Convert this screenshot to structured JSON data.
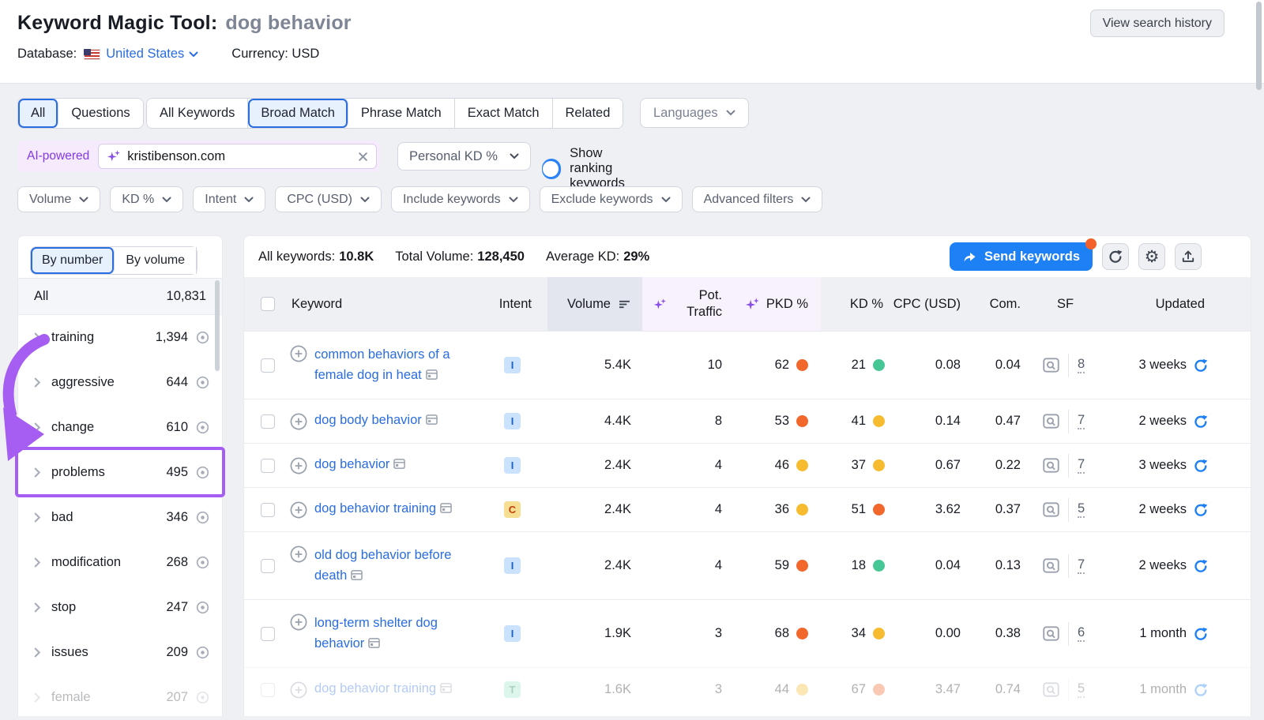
{
  "header": {
    "title": "Keyword Magic Tool:",
    "query": "dog behavior",
    "view_history_label": "View search history",
    "database_label": "Database:",
    "database_value": "United States",
    "currency_label": "Currency:",
    "currency_value": "USD"
  },
  "match_tabs": {
    "group1": [
      {
        "label": "All",
        "active": true
      },
      {
        "label": "Questions",
        "active": false
      }
    ],
    "group2": [
      {
        "label": "All Keywords",
        "active": false
      },
      {
        "label": "Broad Match",
        "active": true
      },
      {
        "label": "Phrase Match",
        "active": false
      },
      {
        "label": "Exact Match",
        "active": false
      },
      {
        "label": "Related",
        "active": false
      }
    ],
    "languages_label": "Languages"
  },
  "search": {
    "ai_label": "AI-powered",
    "value": "kristibenson.com",
    "personal_kd_label": "Personal KD %",
    "toggle_label": "Show ranking keywords",
    "toggle_on": true
  },
  "filters": [
    "Volume",
    "KD %",
    "Intent",
    "CPC (USD)",
    "Include keywords",
    "Exclude keywords",
    "Advanced filters"
  ],
  "sidebar": {
    "tabs": [
      {
        "label": "By number",
        "active": true
      },
      {
        "label": "By volume",
        "active": false
      }
    ],
    "all_label": "All",
    "all_count": "10,831",
    "groups": [
      {
        "label": "training",
        "count": "1,394"
      },
      {
        "label": "aggressive",
        "count": "644"
      },
      {
        "label": "change",
        "count": "610"
      },
      {
        "label": "problems",
        "count": "495",
        "highlighted": true
      },
      {
        "label": "bad",
        "count": "346"
      },
      {
        "label": "modification",
        "count": "268"
      },
      {
        "label": "stop",
        "count": "247"
      },
      {
        "label": "issues",
        "count": "209"
      },
      {
        "label": "female",
        "count": "207",
        "faded": true
      }
    ]
  },
  "toolbar": {
    "stats": [
      {
        "label": "All keywords:",
        "value": "10.8K"
      },
      {
        "label": "Total Volume:",
        "value": "128,450"
      },
      {
        "label": "Average KD:",
        "value": "29%"
      }
    ],
    "send_label": "Send keywords"
  },
  "table": {
    "columns": {
      "keyword": "Keyword",
      "intent": "Intent",
      "volume": "Volume",
      "pot_traffic": "Pot. Traffic",
      "pkd": "PKD %",
      "kd": "KD %",
      "cpc": "CPC (USD)",
      "com": "Com.",
      "sf": "SF",
      "updated": "Updated"
    },
    "rows": [
      {
        "keyword": "common behaviors of a female dog in heat",
        "intent": "I",
        "volume": "5.4K",
        "pot_traffic": "10",
        "pkd": "62",
        "pkd_level": "orange",
        "kd": "21",
        "kd_level": "green",
        "cpc": "0.08",
        "com": "0.04",
        "sf": "8",
        "updated": "3 weeks",
        "two_line": true
      },
      {
        "keyword": "dog body behavior",
        "intent": "I",
        "volume": "4.4K",
        "pot_traffic": "8",
        "pkd": "53",
        "pkd_level": "orange",
        "kd": "41",
        "kd_level": "yellow",
        "cpc": "0.14",
        "com": "0.47",
        "sf": "7",
        "updated": "2 weeks",
        "two_line": false
      },
      {
        "keyword": "dog behavior",
        "intent": "I",
        "volume": "2.4K",
        "pot_traffic": "4",
        "pkd": "46",
        "pkd_level": "yellow",
        "kd": "37",
        "kd_level": "yellow",
        "cpc": "0.67",
        "com": "0.22",
        "sf": "7",
        "updated": "3 weeks",
        "two_line": false
      },
      {
        "keyword": "dog behavior training",
        "intent": "C",
        "volume": "2.4K",
        "pot_traffic": "4",
        "pkd": "36",
        "pkd_level": "yellow",
        "kd": "51",
        "kd_level": "orange",
        "cpc": "3.62",
        "com": "0.37",
        "sf": "5",
        "updated": "2 weeks",
        "two_line": false
      },
      {
        "keyword": "old dog behavior before death",
        "intent": "I",
        "volume": "2.4K",
        "pot_traffic": "4",
        "pkd": "59",
        "pkd_level": "orange",
        "kd": "18",
        "kd_level": "green",
        "cpc": "0.04",
        "com": "0.13",
        "sf": "7",
        "updated": "2 weeks",
        "two_line": true
      },
      {
        "keyword": "long-term shelter dog behavior",
        "intent": "I",
        "volume": "1.9K",
        "pot_traffic": "3",
        "pkd": "68",
        "pkd_level": "orange",
        "kd": "34",
        "kd_level": "yellow",
        "cpc": "0.00",
        "com": "0.38",
        "sf": "6",
        "updated": "1 month",
        "two_line": true
      },
      {
        "keyword": "dog behavior training",
        "intent": "T",
        "volume": "1.6K",
        "pot_traffic": "3",
        "pkd": "44",
        "pkd_level": "yellow",
        "kd": "67",
        "kd_level": "orange",
        "cpc": "3.47",
        "com": "0.74",
        "sf": "5",
        "updated": "1 month",
        "two_line": false,
        "faded": true
      }
    ]
  },
  "colors": {
    "accent_blue": "#1e80f5",
    "link_blue": "#2a6de0",
    "sparkle_purple": "#8b4fe8",
    "annotation_purple": "#a55df2",
    "dot_orange": "#f2672c",
    "dot_yellow": "#f6bb2e",
    "dot_green": "#48c796",
    "notification_orange": "#f4602a"
  },
  "icons": {
    "us-flag": "css-stripes-flag",
    "dropdown-chevron": "v",
    "clear-x": "x",
    "ai-sparkle": "four-point-star",
    "toggle-on": "switch",
    "sort-icon": "descending-bars",
    "send-arrow": "forward-arrow",
    "refresh": "circular-arrow",
    "gear": "⚙",
    "export": "arrow-up-tray",
    "plus-circle": "circled-plus",
    "serp-card": "window-card",
    "serp-preview": "window-magnifier",
    "eye": "circle-dot",
    "chevron-right": ">"
  }
}
